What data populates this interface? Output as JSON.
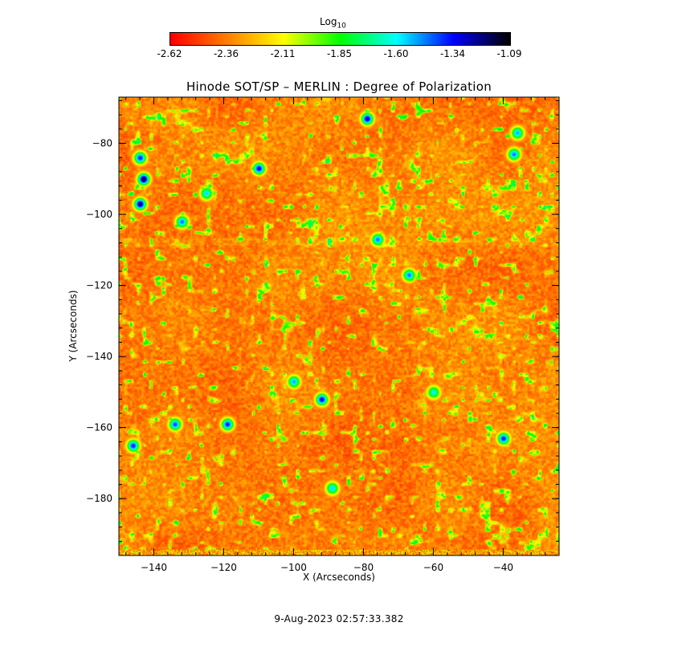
{
  "colorbar": {
    "title_main": "Log",
    "title_sub": "10",
    "tick_labels": [
      "-2.62",
      "-2.36",
      "-2.11",
      "-1.85",
      "-1.60",
      "-1.34",
      "-1.09"
    ],
    "colormap": [
      "#ff0000",
      "#ff7f00",
      "#ffff00",
      "#00ff00",
      "#00ffff",
      "#0000ff",
      "#000000"
    ]
  },
  "chart_data": {
    "type": "heatmap",
    "title": "Hinode SOT/SP – MERLIN : Degree of Polarization",
    "xlabel": "X (Arcseconds)",
    "ylabel": "Y (Arcseconds)",
    "xlim": [
      -150,
      -24
    ],
    "ylim": [
      -196,
      -67
    ],
    "x_ticks": [
      -140,
      -120,
      -100,
      -80,
      -60,
      -40
    ],
    "y_ticks": [
      -80,
      -100,
      -120,
      -140,
      -160,
      -180
    ],
    "color_range": [
      -2.62,
      -1.09
    ],
    "color_scale": "log10",
    "values_description": "Dense mottled field dominated by red/orange (about -2.5 to -2.3), with speckled yellow/green network and scattered blue/black polarization concentrations.",
    "concentrations": [
      {
        "x": -143,
        "y": -90,
        "level": -1.15
      },
      {
        "x": -144,
        "y": -97,
        "level": -1.2
      },
      {
        "x": -144,
        "y": -84,
        "level": -1.35
      },
      {
        "x": -110,
        "y": -87,
        "level": -1.3
      },
      {
        "x": -79,
        "y": -73,
        "level": -1.25
      },
      {
        "x": -92,
        "y": -152,
        "level": -1.3
      },
      {
        "x": -119,
        "y": -159,
        "level": -1.35
      },
      {
        "x": -134,
        "y": -159,
        "level": -1.4
      },
      {
        "x": -146,
        "y": -165,
        "level": -1.35
      },
      {
        "x": -40,
        "y": -163,
        "level": -1.35
      },
      {
        "x": -76,
        "y": -107,
        "level": -1.45
      },
      {
        "x": -67,
        "y": -117,
        "level": -1.45
      },
      {
        "x": -132,
        "y": -102,
        "level": -1.45
      },
      {
        "x": -37,
        "y": -83,
        "level": -1.45
      },
      {
        "x": -36,
        "y": -77,
        "level": -1.5
      },
      {
        "x": -125,
        "y": -94,
        "level": -1.55
      },
      {
        "x": -100,
        "y": -147,
        "level": -1.5
      },
      {
        "x": -89,
        "y": -177,
        "level": -1.55
      },
      {
        "x": -60,
        "y": -150,
        "level": -1.6
      }
    ]
  },
  "footer": {
    "timestamp": "9-Aug-2023 02:57:33.382"
  }
}
